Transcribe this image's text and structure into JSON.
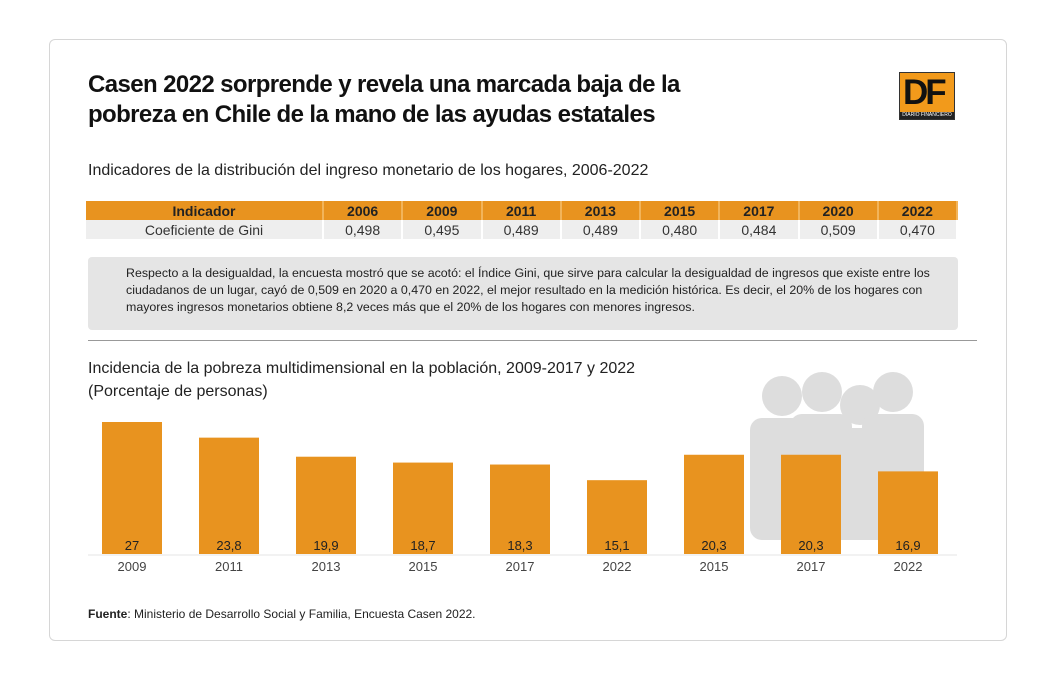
{
  "header": {
    "title": "Casen 2022 sorprende y revela una marcada baja de la pobreza en Chile de la mano de las ayudas estatales",
    "logo_text": "DF",
    "logo_sub": "DIARIO FINANCIERO"
  },
  "table": {
    "subtitle": "Indicadores de la distribución del ingreso monetario de los hogares, 2006-2022",
    "headers": [
      "Indicador",
      "2006",
      "2009",
      "2011",
      "2013",
      "2015",
      "2017",
      "2020",
      "2022"
    ],
    "row": [
      "Coeficiente de Gini",
      "0,498",
      "0,495",
      "0,489",
      "0,489",
      "0,480",
      "0,484",
      "0,509",
      "0,470"
    ],
    "accent": "#e8931f"
  },
  "note": "Respecto a la desigualdad, la encuesta mostró que se acotó: el Índice Gini, que sirve para calcular la desigualdad de ingresos que existe entre los ciudadanos de un lugar, cayó de 0,509 en 2020 a 0,470 en 2022, el mejor resultado en la medición histórica. Es decir, el 20% de los hogares con mayores ingresos monetarios obtiene 8,2 veces más que el 20% de los hogares con menores ingresos.",
  "chart_data": {
    "type": "bar",
    "title": "Incidencia de la pobreza multidimensional en la población, 2009-2017 y 2022",
    "subtitle": "(Porcentaje de personas)",
    "categories": [
      "2009",
      "2011",
      "2013",
      "2015",
      "2017",
      "2022",
      "2015",
      "2017",
      "2022"
    ],
    "values": [
      27,
      23.8,
      19.9,
      18.7,
      18.3,
      15.1,
      20.3,
      20.3,
      16.9
    ],
    "labels": [
      "27",
      "23,8",
      "19,9",
      "18,7",
      "18,3",
      "15,1",
      "20,3",
      "20,3",
      "16,9"
    ],
    "ylim": [
      0,
      27
    ],
    "grid": false,
    "bar_color": "#e8931f",
    "background_icon": "people-group-icon"
  },
  "footer": {
    "source_label": "Fuente",
    "source_text": ": Ministerio de Desarrollo Social y Familia, Encuesta Casen 2022."
  }
}
